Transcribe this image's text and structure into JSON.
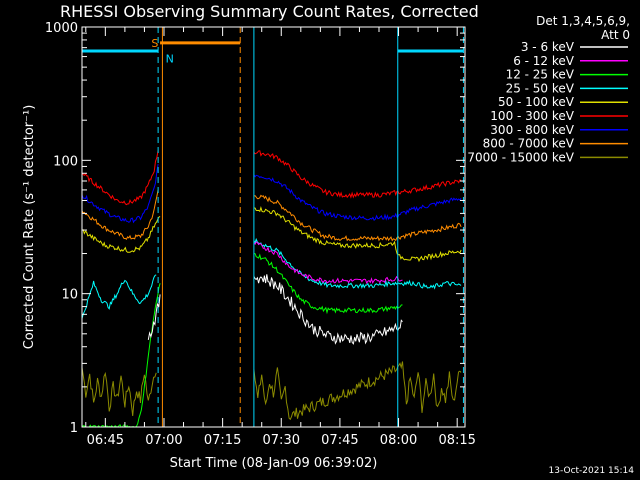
{
  "title": "RHESSI Observing Summary Count Rates, Corrected",
  "footer_date": "13-Oct-2021 15:14",
  "legend_header": [
    "Det 1,3,4,5,6,9,",
    "Att 0"
  ],
  "flags": [
    {
      "label": "S",
      "color": "#ff8c00"
    },
    {
      "label": "N",
      "color": "#00d8ff"
    }
  ],
  "chart_data": {
    "type": "line",
    "title": "RHESSI Observing Summary Count Rates, Corrected",
    "xlabel": "Start Time (08-Jan-09 06:39:02)",
    "ylabel": "Corrected Count Rate (s⁻¹ detector⁻¹)",
    "yscale": "log",
    "ylim": [
      1,
      1000
    ],
    "xlim": [
      39.03,
      137.0
    ],
    "x_unit": "minutes after 06:00",
    "xticks": [
      {
        "value": 45,
        "label": "06:45"
      },
      {
        "value": 60,
        "label": "07:00"
      },
      {
        "value": 75,
        "label": "07:15"
      },
      {
        "value": 90,
        "label": "07:30"
      },
      {
        "value": 105,
        "label": "07:45"
      },
      {
        "value": 120,
        "label": "08:00"
      },
      {
        "value": 135,
        "label": "08:15"
      }
    ],
    "yticks": [
      {
        "value": 1,
        "label": "1"
      },
      {
        "value": 10,
        "label": "10"
      },
      {
        "value": 100,
        "label": "100"
      },
      {
        "value": 1000,
        "label": "1000"
      }
    ],
    "data_gaps": [
      [
        62.0,
        82.5
      ]
    ],
    "saa_bar": {
      "start": 59.0,
      "end": 79.5,
      "value": 760,
      "color": "#ff8c00"
    },
    "night_bars": [
      {
        "start": 39.03,
        "end": 58.5,
        "value": 660,
        "color": "#00d8ff"
      },
      {
        "start": 119.8,
        "end": 136.6,
        "value": 660,
        "color": "#00d8ff"
      }
    ],
    "vertical_markers": [
      {
        "x": 58.5,
        "color": "#00d8ff",
        "style": "dashed"
      },
      {
        "x": 59.6,
        "color": "#ff8c00",
        "style": "solid"
      },
      {
        "x": 79.5,
        "color": "#ff8c00",
        "style": "dashed"
      },
      {
        "x": 83.0,
        "color": "#00d8ff",
        "style": "solid"
      },
      {
        "x": 119.8,
        "color": "#00d8ff",
        "style": "solid"
      },
      {
        "x": 136.6,
        "color": "#00d8ff",
        "style": "dashed"
      }
    ],
    "series": [
      {
        "name": "3 - 6 keV",
        "color": "#ffffff",
        "x": [
          56.0,
          57.0,
          58.0,
          59.0,
          83.0,
          86.0,
          89.0,
          92.0,
          95.0,
          98.0,
          102.0,
          106.0,
          110.0,
          114.0,
          118.0,
          121.0
        ],
        "y": [
          4.5,
          5.5,
          7.0,
          9.0,
          13.5,
          13.0,
          11.5,
          9.0,
          7.0,
          5.5,
          4.8,
          4.6,
          4.6,
          4.8,
          5.3,
          5.8
        ]
      },
      {
        "name": "6 - 12 keV",
        "color": "#ff00ff",
        "x": [
          83.0,
          86.0,
          89.0,
          92.0,
          95.0,
          98.0,
          102.0,
          106.0,
          110.0,
          114.0,
          118.0,
          121.0
        ],
        "y": [
          24.0,
          22.0,
          20.0,
          16.0,
          14.0,
          13.0,
          12.5,
          12.5,
          12.5,
          12.5,
          12.8,
          13.0
        ]
      },
      {
        "name": "12 - 25 keV",
        "color": "#00ff00",
        "x": [
          39.03,
          53.0,
          54.5,
          56.0,
          57.5,
          59.0,
          83.0,
          86.0,
          89.0,
          92.0,
          95.0,
          98.0,
          102.0,
          106.0,
          110.0,
          114.0,
          118.0,
          121.0
        ],
        "y": [
          1.0,
          1.0,
          1.5,
          3.5,
          7.0,
          12.0,
          20.0,
          18.0,
          15.0,
          11.5,
          9.0,
          8.0,
          7.5,
          7.5,
          7.5,
          7.5,
          7.8,
          8.0
        ]
      },
      {
        "name": "25 - 50 keV",
        "color": "#00ffff",
        "x": [
          39.03,
          42.0,
          44.0,
          46.0,
          48.0,
          50.0,
          52.0,
          54.0,
          56.0,
          58.0,
          83.0,
          86.0,
          89.0,
          92.0,
          95.0,
          98.0,
          102.0,
          106.0,
          110.0,
          114.0,
          118.0,
          121.0,
          124.0,
          128.0,
          132.0,
          136.0
        ],
        "y": [
          6.5,
          12.0,
          9.0,
          8.0,
          10.0,
          13.0,
          10.0,
          8.5,
          10.0,
          14.0,
          25.0,
          23.0,
          21.0,
          17.0,
          14.0,
          12.5,
          11.5,
          11.5,
          11.5,
          11.5,
          12.0,
          12.0,
          12.0,
          11.0,
          12.0,
          11.5
        ]
      },
      {
        "name": "50 - 100 keV",
        "color": "#e0e000",
        "x": [
          39.03,
          42.0,
          45.0,
          48.0,
          51.0,
          54.0,
          56.0,
          57.5,
          59.0,
          83.0,
          86.0,
          89.0,
          92.0,
          95.0,
          98.0,
          101.0,
          105.0,
          110.0,
          115.0,
          119.0,
          120.0,
          124.0,
          128.0,
          132.0,
          136.0
        ],
        "y": [
          30.0,
          26.0,
          23.0,
          22.0,
          21.0,
          22.0,
          26.0,
          32.0,
          38.0,
          44.0,
          42.0,
          40.0,
          34.0,
          29.0,
          26.0,
          24.0,
          23.0,
          23.0,
          23.0,
          24.0,
          19.0,
          18.0,
          19.0,
          20.0,
          21.0
        ]
      },
      {
        "name": "100 - 300 keV",
        "color": "#ff0000",
        "x": [
          39.03,
          42.0,
          45.0,
          48.0,
          51.0,
          54.0,
          56.0,
          57.5,
          58.5,
          83.0,
          86.0,
          89.0,
          92.0,
          95.0,
          98.0,
          101.0,
          105.0,
          110.0,
          115.0,
          119.0,
          121.0,
          124.0,
          128.0,
          132.0,
          136.0
        ],
        "y": [
          80.0,
          68.0,
          58.0,
          50.0,
          48.0,
          52.0,
          65.0,
          85.0,
          120.0,
          115.0,
          112.0,
          105.0,
          90.0,
          74.0,
          65.0,
          58.0,
          55.0,
          55.0,
          55.0,
          57.0,
          58.0,
          60.0,
          63.0,
          67.0,
          70.0
        ]
      },
      {
        "name": "300 - 800 keV",
        "color": "#0000ff",
        "x": [
          39.03,
          42.0,
          45.0,
          48.0,
          51.0,
          54.0,
          56.0,
          57.5,
          58.5,
          83.0,
          86.0,
          89.0,
          92.0,
          95.0,
          98.0,
          101.0,
          105.0,
          110.0,
          115.0,
          119.0,
          121.0,
          124.0,
          128.0,
          132.0,
          136.0
        ],
        "y": [
          55.0,
          47.0,
          41.0,
          37.0,
          35.0,
          37.0,
          45.0,
          62.0,
          90.0,
          78.0,
          75.0,
          70.0,
          60.0,
          50.0,
          44.0,
          40.0,
          38.0,
          37.0,
          37.0,
          38.0,
          40.0,
          43.0,
          46.0,
          49.0,
          52.0
        ]
      },
      {
        "name": "800 - 7000 keV",
        "color": "#ff8c00",
        "x": [
          39.03,
          42.0,
          45.0,
          48.0,
          51.0,
          54.0,
          56.0,
          57.5,
          58.5,
          83.0,
          86.0,
          89.0,
          92.0,
          95.0,
          98.0,
          101.0,
          105.0,
          110.0,
          115.0,
          119.0,
          121.0,
          124.0,
          128.0,
          132.0,
          136.0
        ],
        "y": [
          42.0,
          36.0,
          31.0,
          28.0,
          26.0,
          27.0,
          32.0,
          42.0,
          60.0,
          54.0,
          52.0,
          48.0,
          41.0,
          34.0,
          30.0,
          27.0,
          26.0,
          26.0,
          26.0,
          26.0,
          27.0,
          28.0,
          29.5,
          31.0,
          33.0
        ]
      },
      {
        "name": "7000 - 15000 keV",
        "color": "#8b8b00",
        "x": [
          39.03,
          40.0,
          41.0,
          42.0,
          43.0,
          44.0,
          45.0,
          46.0,
          47.0,
          48.0,
          49.0,
          50.0,
          51.0,
          52.0,
          53.0,
          54.0,
          55.0,
          56.0,
          57.0,
          58.0,
          83.0,
          84.0,
          85.0,
          86.0,
          87.0,
          88.0,
          89.0,
          90.0,
          91.0,
          92.0,
          121.0,
          122.0,
          123.0,
          124.0,
          125.0,
          126.0,
          127.0,
          128.0,
          129.0,
          130.0,
          131.0,
          132.0,
          133.0,
          134.0,
          135.0,
          136.0
        ],
        "y": [
          2.8,
          1.8,
          2.5,
          1.5,
          2.2,
          1.7,
          2.7,
          1.4,
          2.0,
          1.6,
          2.4,
          1.5,
          2.1,
          1.3,
          1.9,
          1.6,
          2.6,
          1.5,
          2.2,
          2.8,
          2.7,
          1.6,
          2.5,
          1.4,
          2.2,
          1.8,
          2.6,
          1.5,
          2.0,
          1.2,
          2.8,
          1.5,
          2.3,
          1.6,
          2.6,
          1.4,
          2.1,
          1.7,
          2.5,
          1.3,
          2.0,
          1.6,
          2.4,
          1.5,
          2.2,
          2.8
        ]
      }
    ]
  }
}
